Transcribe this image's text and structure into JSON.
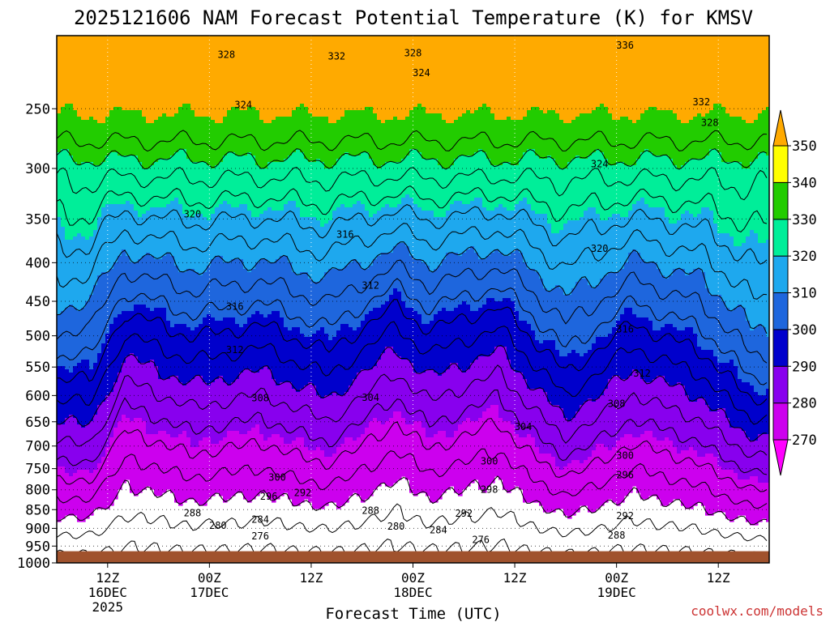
{
  "chart_data": {
    "type": "heatmap",
    "title": "2025121606 NAM Forecast Potential Temperature (K) for KMSV",
    "xlabel": "Forecast Time (UTC)",
    "ylabel": "",
    "y_scale": "log-pressure",
    "y_axis_reversed": true,
    "ylim": [
      1000,
      200
    ],
    "y_ticks": [
      "250",
      "300",
      "350",
      "400",
      "450",
      "500",
      "550",
      "600",
      "650",
      "700",
      "750",
      "800",
      "850",
      "900",
      "950",
      "1000"
    ],
    "x_ticks": [
      {
        "label": "12Z",
        "sub1": "16DEC",
        "sub2": "2025",
        "hour": 6
      },
      {
        "label": "00Z",
        "sub1": "17DEC",
        "sub2": "",
        "hour": 18
      },
      {
        "label": "12Z",
        "sub1": "",
        "sub2": "",
        "hour": 30
      },
      {
        "label": "00Z",
        "sub1": "18DEC",
        "sub2": "",
        "hour": 42
      },
      {
        "label": "12Z",
        "sub1": "",
        "sub2": "",
        "hour": 54
      },
      {
        "label": "00Z",
        "sub1": "19DEC",
        "sub2": "",
        "hour": 66
      },
      {
        "label": "12Z",
        "sub1": "",
        "sub2": "",
        "hour": 78
      }
    ],
    "xlim_hours": [
      0,
      84
    ],
    "grid": true,
    "colorbar": {
      "levels": [
        270,
        280,
        290,
        300,
        310,
        320,
        330,
        340,
        350
      ],
      "labels": [
        "270",
        "280",
        "290",
        "300",
        "310",
        "320",
        "330",
        "340",
        "350"
      ],
      "colors": [
        "#ff00ff",
        "#cc00ee",
        "#8800ee",
        "#0000cc",
        "#1e66dd",
        "#1ea8ee",
        "#00ee99",
        "#22cc00",
        "#ffff00",
        "#ffaa00"
      ],
      "placement": "right"
    },
    "terrain_color": "#a0522d",
    "surface_pressure_hpa": 965,
    "contour_labels": [
      {
        "value": "328",
        "hour": 20,
        "p": 212
      },
      {
        "value": "332",
        "hour": 33,
        "p": 213
      },
      {
        "value": "328",
        "hour": 42,
        "p": 211
      },
      {
        "value": "336",
        "hour": 67,
        "p": 206
      },
      {
        "value": "324",
        "hour": 43,
        "p": 224
      },
      {
        "value": "324",
        "hour": 22,
        "p": 247
      },
      {
        "value": "332",
        "hour": 76,
        "p": 245
      },
      {
        "value": "328",
        "hour": 77,
        "p": 261
      },
      {
        "value": "324",
        "hour": 64,
        "p": 296
      },
      {
        "value": "320",
        "hour": 16,
        "p": 345
      },
      {
        "value": "316",
        "hour": 34,
        "p": 367
      },
      {
        "value": "320",
        "hour": 64,
        "p": 383
      },
      {
        "value": "312",
        "hour": 37,
        "p": 429
      },
      {
        "value": "316",
        "hour": 21,
        "p": 457
      },
      {
        "value": "316",
        "hour": 67,
        "p": 490
      },
      {
        "value": "312",
        "hour": 21,
        "p": 522
      },
      {
        "value": "312",
        "hour": 69,
        "p": 561
      },
      {
        "value": "308",
        "hour": 24,
        "p": 605
      },
      {
        "value": "304",
        "hour": 37,
        "p": 604
      },
      {
        "value": "308",
        "hour": 66,
        "p": 615
      },
      {
        "value": "304",
        "hour": 55,
        "p": 660
      },
      {
        "value": "300",
        "hour": 67,
        "p": 721
      },
      {
        "value": "300",
        "hour": 51,
        "p": 733
      },
      {
        "value": "300",
        "hour": 26,
        "p": 770
      },
      {
        "value": "296",
        "hour": 67,
        "p": 765
      },
      {
        "value": "292",
        "hour": 29,
        "p": 807
      },
      {
        "value": "298",
        "hour": 51,
        "p": 800
      },
      {
        "value": "296",
        "hour": 25,
        "p": 817
      },
      {
        "value": "288",
        "hour": 16,
        "p": 859
      },
      {
        "value": "288",
        "hour": 37,
        "p": 853
      },
      {
        "value": "292",
        "hour": 48,
        "p": 860
      },
      {
        "value": "292",
        "hour": 67,
        "p": 866
      },
      {
        "value": "284",
        "hour": 24,
        "p": 876
      },
      {
        "value": "280",
        "hour": 19,
        "p": 893
      },
      {
        "value": "280",
        "hour": 40,
        "p": 895
      },
      {
        "value": "284",
        "hour": 45,
        "p": 905
      },
      {
        "value": "276",
        "hour": 24,
        "p": 922
      },
      {
        "value": "276",
        "hour": 50,
        "p": 932
      },
      {
        "value": "288",
        "hour": 66,
        "p": 919
      }
    ]
  },
  "footer": {
    "credit": "coolwx.com/models"
  }
}
